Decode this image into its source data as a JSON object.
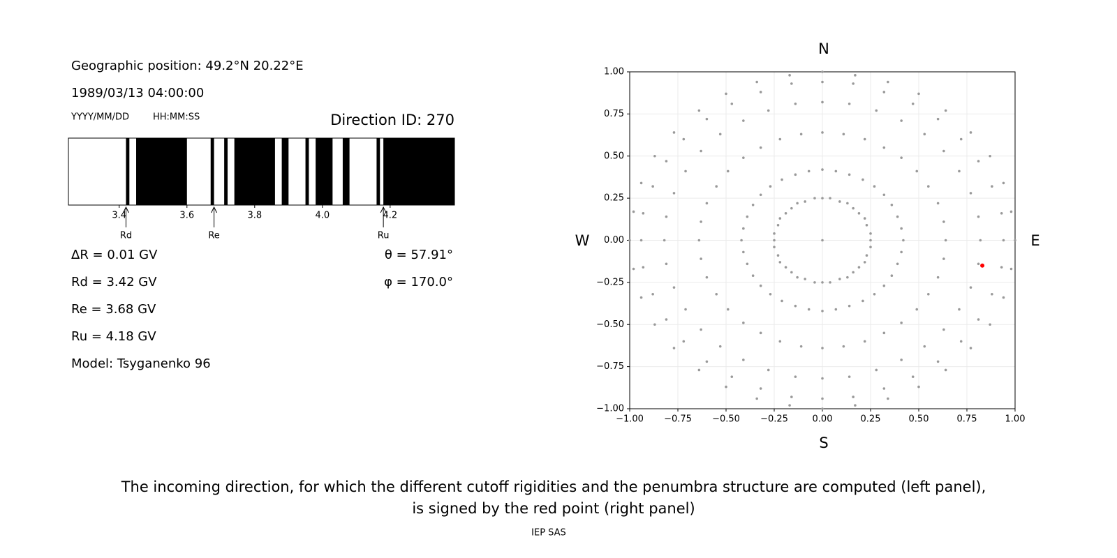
{
  "header": {
    "position": "Geographic position: 49.2°N 20.22°E",
    "datetime": "1989/03/13 04:00:00",
    "date_format": "YYYY/MM/DD",
    "time_format": "HH:MM:SS",
    "direction": "Direction ID: 270"
  },
  "info_left": [
    "ΔR = 0.01 GV",
    "Rd = 3.42 GV",
    "Re = 3.68 GV",
    "Ru = 4.18 GV",
    "Model: Tsyganenko 96"
  ],
  "info_right": [
    "θ = 57.91°",
    "φ = 170.0°"
  ],
  "chart_data": [
    {
      "type": "penumbra",
      "xlim": [
        3.25,
        4.39
      ],
      "xticks": [
        3.4,
        3.6,
        3.8,
        {
          "value": 4,
          "label": "4.0"
        },
        4.2
      ],
      "black_bands": [
        [
          3.42,
          3.43
        ],
        [
          3.45,
          3.6
        ],
        [
          3.67,
          3.68
        ],
        [
          3.71,
          3.72
        ],
        [
          3.74,
          3.86
        ],
        [
          3.88,
          3.9
        ],
        [
          3.95,
          3.96
        ],
        [
          3.98,
          4.03
        ],
        [
          4.06,
          4.08
        ],
        [
          4.16,
          4.17
        ],
        [
          4.18,
          4.39
        ]
      ],
      "markers": [
        {
          "label": "Rd",
          "value": 3.42
        },
        {
          "label": "Re",
          "value": 3.68
        },
        {
          "label": "Ru",
          "value": 4.18
        }
      ]
    },
    {
      "type": "scatter",
      "xlim": [
        -1,
        1
      ],
      "ylim": [
        -1,
        1
      ],
      "grid": true,
      "xticks": [
        {
          "value": -1,
          "label": "−1.00"
        },
        {
          "value": -0.75,
          "label": "−0.75"
        },
        {
          "value": -0.5,
          "label": "−0.50"
        },
        {
          "value": -0.25,
          "label": "−0.25"
        },
        {
          "value": 0,
          "label": "0.00"
        },
        {
          "value": 0.25,
          "label": "0.25"
        },
        {
          "value": 0.5,
          "label": "0.50"
        },
        {
          "value": 0.75,
          "label": "0.75"
        },
        {
          "value": 1,
          "label": "1.00"
        }
      ],
      "yticks": [
        {
          "value": -1,
          "label": "−1.00"
        },
        {
          "value": -0.75,
          "label": "−0.75"
        },
        {
          "value": -0.5,
          "label": "−0.50"
        },
        {
          "value": -0.25,
          "label": "−0.25"
        },
        {
          "value": 0,
          "label": "0.00"
        },
        {
          "value": 0.25,
          "label": "0.25"
        },
        {
          "value": 0.5,
          "label": "0.50"
        },
        {
          "value": 0.75,
          "label": "0.75"
        },
        {
          "value": 1,
          "label": "1.00"
        }
      ],
      "compass": {
        "north": "N",
        "south": "S",
        "west": "W",
        "east": "E"
      },
      "series": [
        {
          "color": "#999999",
          "x": [
            0,
            0.25,
            0.25,
            0.23,
            0.22,
            0.19,
            0.16,
            0.13,
            0.09,
            0.04,
            0,
            -0.04,
            -0.09,
            -0.13,
            -0.16,
            -0.19,
            -0.22,
            -0.23,
            -0.25,
            -0.25,
            -0.25,
            -0.23,
            -0.22,
            -0.19,
            -0.16,
            -0.13,
            -0.09,
            -0.04,
            0,
            0.04,
            0.09,
            0.13,
            0.16,
            0.19,
            0.22,
            0.23,
            0.25,
            0.42,
            0.41,
            0.39,
            0.36,
            0.32,
            0.27,
            0.21,
            0.14,
            0.07,
            0,
            -0.07,
            -0.14,
            -0.21,
            -0.27,
            -0.32,
            -0.36,
            -0.39,
            -0.41,
            -0.42,
            -0.41,
            -0.39,
            -0.36,
            -0.32,
            -0.27,
            -0.21,
            -0.14,
            -0.07,
            0,
            0.07,
            0.14,
            0.21,
            0.27,
            0.32,
            0.36,
            0.39,
            0.41,
            0.64,
            0.63,
            0.6,
            0.55,
            0.49,
            0.41,
            0.32,
            0.22,
            0.11,
            0,
            -0.11,
            -0.22,
            -0.32,
            -0.41,
            -0.49,
            -0.55,
            -0.6,
            -0.63,
            -0.64,
            -0.63,
            -0.6,
            -0.55,
            -0.49,
            -0.41,
            -0.32,
            -0.22,
            -0.11,
            0,
            0.11,
            0.22,
            0.32,
            0.41,
            0.49,
            0.55,
            0.6,
            0.63,
            0.82,
            0.81,
            0.77,
            0.71,
            0.63,
            0.53,
            0.41,
            0.28,
            0.14,
            0,
            -0.14,
            -0.28,
            -0.41,
            -0.53,
            -0.63,
            -0.71,
            -0.77,
            -0.81,
            -0.82,
            -0.81,
            -0.77,
            -0.71,
            -0.63,
            -0.53,
            -0.41,
            -0.28,
            -0.14,
            0,
            0.14,
            0.28,
            0.41,
            0.53,
            0.63,
            0.71,
            0.77,
            0.81,
            0.94,
            0.93,
            0.88,
            0.81,
            0.72,
            0.6,
            0.47,
            0.32,
            0.16,
            0,
            -0.16,
            -0.32,
            -0.47,
            -0.6,
            -0.72,
            -0.81,
            -0.88,
            -0.93,
            -0.94,
            -0.93,
            -0.88,
            -0.81,
            -0.72,
            -0.6,
            -0.47,
            -0.32,
            -0.16,
            0,
            0.16,
            0.32,
            0.47,
            0.6,
            0.72,
            0.81,
            0.88,
            0.93,
            1,
            0.98,
            0.94,
            0.87,
            0.77,
            0.64,
            0.5,
            0.34,
            0.17,
            0,
            -0.17,
            -0.34,
            -0.5,
            -0.64,
            -0.77,
            -0.87,
            -0.94,
            -0.98,
            -1,
            -0.98,
            -0.94,
            -0.87,
            -0.77,
            -0.64,
            -0.5,
            -0.34,
            -0.17,
            0,
            0.17,
            0.34,
            0.5,
            0.64,
            0.77,
            0.87,
            0.94,
            0.98
          ],
          "y": [
            0,
            0,
            0.04,
            0.09,
            0.13,
            0.16,
            0.19,
            0.22,
            0.23,
            0.25,
            0.25,
            0.25,
            0.23,
            0.22,
            0.19,
            0.16,
            0.13,
            0.09,
            0.04,
            0,
            -0.04,
            -0.09,
            -0.13,
            -0.16,
            -0.19,
            -0.22,
            -0.23,
            -0.25,
            -0.25,
            -0.25,
            -0.23,
            -0.22,
            -0.19,
            -0.16,
            -0.13,
            -0.09,
            -0.04,
            0,
            0.07,
            0.14,
            0.21,
            0.27,
            0.32,
            0.36,
            0.39,
            0.41,
            0.42,
            0.41,
            0.39,
            0.36,
            0.32,
            0.27,
            0.21,
            0.14,
            0.07,
            0,
            -0.07,
            -0.14,
            -0.21,
            -0.27,
            -0.32,
            -0.36,
            -0.39,
            -0.41,
            -0.42,
            -0.41,
            -0.39,
            -0.36,
            -0.32,
            -0.27,
            -0.21,
            -0.14,
            -0.07,
            0,
            0.11,
            0.22,
            0.32,
            0.41,
            0.49,
            0.55,
            0.6,
            0.63,
            0.64,
            0.63,
            0.6,
            0.55,
            0.49,
            0.41,
            0.32,
            0.22,
            0.11,
            0,
            -0.11,
            -0.22,
            -0.32,
            -0.41,
            -0.49,
            -0.55,
            -0.6,
            -0.63,
            -0.64,
            -0.63,
            -0.6,
            -0.55,
            -0.49,
            -0.41,
            -0.32,
            -0.22,
            -0.11,
            0,
            0.14,
            0.28,
            0.41,
            0.53,
            0.63,
            0.71,
            0.77,
            0.81,
            0.82,
            0.81,
            0.77,
            0.71,
            0.63,
            0.53,
            0.41,
            0.28,
            0.14,
            0,
            -0.14,
            -0.28,
            -0.41,
            -0.53,
            -0.63,
            -0.71,
            -0.77,
            -0.81,
            -0.82,
            -0.81,
            -0.77,
            -0.71,
            -0.63,
            -0.53,
            -0.41,
            -0.28,
            -0.14,
            0,
            0.16,
            0.32,
            0.47,
            0.6,
            0.72,
            0.81,
            0.88,
            0.93,
            0.94,
            0.93,
            0.88,
            0.81,
            0.72,
            0.6,
            0.47,
            0.32,
            0.16,
            0,
            -0.16,
            -0.32,
            -0.47,
            -0.6,
            -0.72,
            -0.81,
            -0.88,
            -0.93,
            -0.94,
            -0.93,
            -0.88,
            -0.81,
            -0.72,
            -0.6,
            -0.47,
            -0.32,
            -0.16,
            0,
            0.17,
            0.34,
            0.5,
            0.64,
            0.77,
            0.87,
            0.94,
            0.98,
            1,
            0.98,
            0.94,
            0.87,
            0.77,
            0.64,
            0.5,
            0.34,
            0.17,
            0,
            -0.17,
            -0.34,
            -0.5,
            -0.64,
            -0.77,
            -0.87,
            -0.94,
            -0.98,
            -1,
            -0.98,
            -0.94,
            -0.87,
            -0.77,
            -0.64,
            -0.5,
            -0.34,
            -0.17
          ]
        },
        {
          "color": "#ff0000",
          "x": [
            0.83
          ],
          "y": [
            -0.15
          ]
        }
      ]
    }
  ],
  "caption": [
    "The incoming direction, for which the different cutoff rigidities and the penumbra structure are computed (left panel),",
    "is signed by the red point (right panel)"
  ],
  "footer": "IEP SAS"
}
